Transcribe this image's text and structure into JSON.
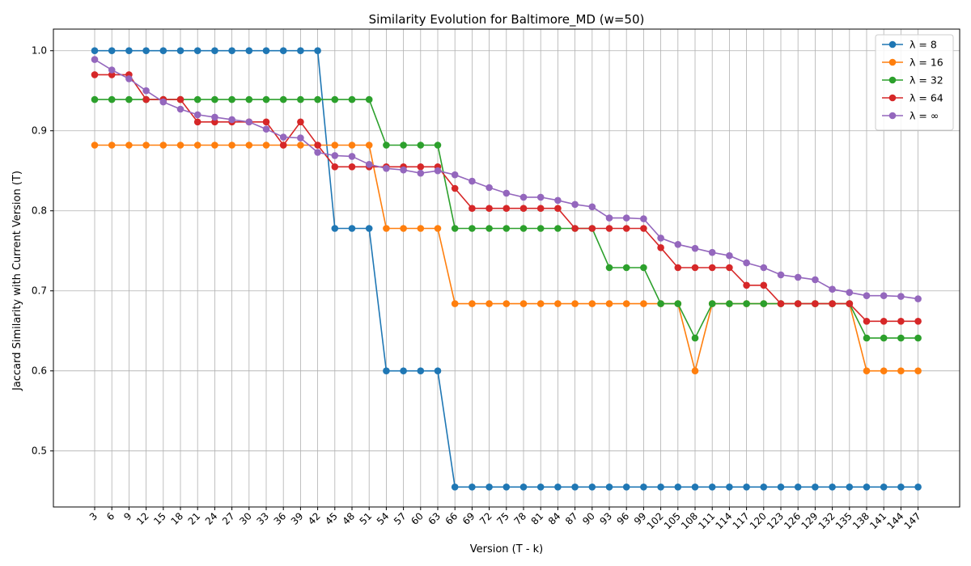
{
  "chart_data": {
    "type": "line",
    "title": "Similarity Evolution for Baltimore_MD (w=50)",
    "xlabel": "Version (T - k)",
    "ylabel": "Jaccard Similarity with Current Version (T)",
    "x": [
      3,
      6,
      9,
      12,
      15,
      18,
      21,
      24,
      27,
      30,
      33,
      36,
      39,
      42,
      45,
      48,
      51,
      54,
      57,
      60,
      63,
      66,
      69,
      72,
      75,
      78,
      81,
      84,
      87,
      90,
      93,
      96,
      99,
      102,
      105,
      108,
      111,
      114,
      117,
      120,
      123,
      126,
      129,
      132,
      135,
      138,
      141,
      144,
      147
    ],
    "ylim": [
      0.43,
      1.027
    ],
    "yticks": [
      "0.5",
      "0.6",
      "0.7",
      "0.8",
      "0.9",
      "1.0"
    ],
    "grid": true,
    "legend_position": "top-right",
    "series": [
      {
        "name": "λ = 8",
        "color": "#1f77b4",
        "values": [
          1.0,
          1.0,
          1.0,
          1.0,
          1.0,
          1.0,
          1.0,
          1.0,
          1.0,
          1.0,
          1.0,
          1.0,
          1.0,
          1.0,
          0.778,
          0.778,
          0.778,
          0.6,
          0.6,
          0.6,
          0.6,
          0.455,
          0.455,
          0.455,
          0.455,
          0.455,
          0.455,
          0.455,
          0.455,
          0.455,
          0.455,
          0.455,
          0.455,
          0.455,
          0.455,
          0.455,
          0.455,
          0.455,
          0.455,
          0.455,
          0.455,
          0.455,
          0.455,
          0.455,
          0.455,
          0.455,
          0.455,
          0.455,
          0.455
        ]
      },
      {
        "name": "λ = 16",
        "color": "#ff7f0e",
        "values": [
          0.882,
          0.882,
          0.882,
          0.882,
          0.882,
          0.882,
          0.882,
          0.882,
          0.882,
          0.882,
          0.882,
          0.882,
          0.882,
          0.882,
          0.882,
          0.882,
          0.882,
          0.778,
          0.778,
          0.778,
          0.778,
          0.684,
          0.684,
          0.684,
          0.684,
          0.684,
          0.684,
          0.684,
          0.684,
          0.684,
          0.684,
          0.684,
          0.684,
          0.684,
          0.684,
          0.6,
          0.684,
          0.684,
          0.684,
          0.684,
          0.684,
          0.684,
          0.684,
          0.684,
          0.684,
          0.6,
          0.6,
          0.6,
          0.6
        ]
      },
      {
        "name": "λ = 32",
        "color": "#2ca02c",
        "values": [
          0.939,
          0.939,
          0.939,
          0.939,
          0.939,
          0.939,
          0.939,
          0.939,
          0.939,
          0.939,
          0.939,
          0.939,
          0.939,
          0.939,
          0.939,
          0.939,
          0.939,
          0.882,
          0.882,
          0.882,
          0.882,
          0.778,
          0.778,
          0.778,
          0.778,
          0.778,
          0.778,
          0.778,
          0.778,
          0.778,
          0.729,
          0.729,
          0.729,
          0.684,
          0.684,
          0.641,
          0.684,
          0.684,
          0.684,
          0.684,
          0.684,
          0.684,
          0.684,
          0.684,
          0.684,
          0.641,
          0.641,
          0.641,
          0.641
        ]
      },
      {
        "name": "λ = 64",
        "color": "#d62728",
        "values": [
          0.97,
          0.97,
          0.97,
          0.939,
          0.939,
          0.939,
          0.911,
          0.911,
          0.911,
          0.911,
          0.911,
          0.882,
          0.911,
          0.882,
          0.855,
          0.855,
          0.855,
          0.855,
          0.855,
          0.855,
          0.855,
          0.828,
          0.803,
          0.803,
          0.803,
          0.803,
          0.803,
          0.803,
          0.778,
          0.778,
          0.778,
          0.778,
          0.778,
          0.754,
          0.729,
          0.729,
          0.729,
          0.729,
          0.707,
          0.707,
          0.684,
          0.684,
          0.684,
          0.684,
          0.684,
          0.662,
          0.662,
          0.662,
          0.662
        ]
      },
      {
        "name": "λ = ∞",
        "color": "#9467bd",
        "values": [
          0.989,
          0.976,
          0.965,
          0.95,
          0.936,
          0.927,
          0.92,
          0.917,
          0.914,
          0.911,
          0.902,
          0.892,
          0.891,
          0.873,
          0.869,
          0.868,
          0.858,
          0.853,
          0.851,
          0.847,
          0.85,
          0.845,
          0.837,
          0.829,
          0.822,
          0.817,
          0.817,
          0.813,
          0.808,
          0.805,
          0.791,
          0.791,
          0.79,
          0.766,
          0.758,
          0.753,
          0.748,
          0.744,
          0.735,
          0.729,
          0.72,
          0.717,
          0.714,
          0.702,
          0.698,
          0.694,
          0.694,
          0.693,
          0.69
        ]
      }
    ]
  }
}
